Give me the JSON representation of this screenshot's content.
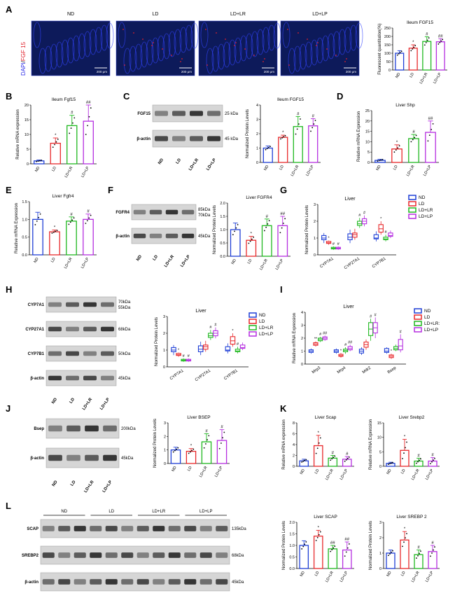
{
  "colors": {
    "ND": "#1f3fd6",
    "LD": "#e8282b",
    "LD+LR": "#1fb81f",
    "LD+LP": "#b52ee0",
    "fgf15_stain": "#e0202a",
    "dapi": "#2a2ae8",
    "blot_bg": "#d6d6d6"
  },
  "groups": [
    "ND",
    "LD",
    "LD+LR",
    "LD+LP"
  ],
  "panel_letters": [
    "A",
    "B",
    "C",
    "D",
    "E",
    "F",
    "G",
    "H",
    "I",
    "J",
    "K",
    "L"
  ],
  "panelA": {
    "stain_label_dapi": "DAPI",
    "stain_label_sep": "/",
    "stain_label_fgf": "FGF 15",
    "images": [
      "ND",
      "LD",
      "LD+LR",
      "LD+LP"
    ],
    "scale": "200 μm"
  },
  "blots": {
    "C": {
      "lanes": [
        "ND",
        "LD",
        "LD+LR",
        "LD+LP"
      ],
      "rows": [
        {
          "name": "FGF15",
          "kda": "25 kDa"
        },
        {
          "name": "β-actin",
          "kda": "45 kDa"
        }
      ]
    },
    "F": {
      "lanes": [
        "ND",
        "LD",
        "LD+LR",
        "LD+LP"
      ],
      "rows": [
        {
          "name": "FGFR4",
          "kda": "85kDa\n70kDa"
        },
        {
          "name": "β-actin",
          "kda": "45kDa"
        }
      ]
    },
    "H": {
      "lanes": [
        "ND",
        "LD",
        "LD+LR",
        "LD+LP"
      ],
      "rows": [
        {
          "name": "CYP7A1",
          "kda": "70kDa\n55kDa"
        },
        {
          "name": "CYP27A1",
          "kda": "68kDa"
        },
        {
          "name": "CYP7B1",
          "kda": "50kDa"
        },
        {
          "name": "β-actin",
          "kda": "45kDa"
        }
      ]
    },
    "J": {
      "lanes": [
        "ND",
        "LD",
        "LD+LR",
        "LD+LP"
      ],
      "rows": [
        {
          "name": "Bsep",
          "kda": "200kDa"
        },
        {
          "name": "β-actin",
          "kda": "45kDa"
        }
      ]
    },
    "L": {
      "group_headers": [
        "ND",
        "LD",
        "LD+LR",
        "LD+LP"
      ],
      "rows": [
        {
          "name": "SCAP",
          "kda": "135kDa"
        },
        {
          "name": "SREBP2",
          "kda": "68kDa"
        },
        {
          "name": "β-actin",
          "kda": "45kDa"
        }
      ]
    }
  },
  "chart_data": [
    {
      "id": "A",
      "type": "bar",
      "title": "Ileum FGF15",
      "ylabel": "Fluorescent quantitation(%)",
      "ylim": [
        0,
        250
      ],
      "yticks": [
        0,
        50,
        100,
        150,
        200,
        250
      ],
      "categories": [
        "ND",
        "LD",
        "LD+LR",
        "LD+LP"
      ],
      "values": [
        100,
        130,
        170,
        168
      ],
      "errors": [
        15,
        20,
        28,
        18
      ],
      "sig": [
        "",
        "*",
        "#",
        "##"
      ]
    },
    {
      "id": "B",
      "type": "bar",
      "title": "Ileum Fgf15",
      "ylabel": "Relative mRNA expression",
      "ylim": [
        0,
        20
      ],
      "yticks": [
        0,
        5,
        10,
        15,
        20
      ],
      "categories": [
        "ND",
        "LD",
        "LD+LR",
        "LD+LP"
      ],
      "values": [
        1,
        7,
        13,
        14.5
      ],
      "errors": [
        0.3,
        1.8,
        3.5,
        6
      ],
      "sig": [
        "",
        "*",
        "#",
        "##"
      ]
    },
    {
      "id": "C",
      "type": "bar",
      "title": "Ileum FGF15",
      "ylabel": "Normalized Protein Levels",
      "ylim": [
        0,
        4
      ],
      "yticks": [
        0,
        1,
        2,
        3,
        4
      ],
      "categories": [
        "ND",
        "LD",
        "LD+LR",
        "LD+LP"
      ],
      "values": [
        1,
        1.75,
        2.5,
        2.55
      ],
      "errors": [
        0.15,
        0.15,
        0.7,
        0.5
      ],
      "sig": [
        "",
        "*",
        "#",
        "#"
      ]
    },
    {
      "id": "D",
      "type": "bar",
      "title": "Liver Shp",
      "ylabel": "Relative mRNA Expression",
      "ylim": [
        0,
        25
      ],
      "yticks": [
        0,
        5,
        10,
        15,
        20,
        25
      ],
      "categories": [
        "ND",
        "LD",
        "LD+LR",
        "LD+LP"
      ],
      "values": [
        1,
        6.5,
        11.5,
        14.5
      ],
      "errors": [
        0.5,
        2,
        2,
        5.5
      ],
      "sig": [
        "",
        "*",
        "#",
        "##"
      ]
    },
    {
      "id": "E",
      "type": "bar",
      "title": "Liver Fgfr4",
      "ylabel": "Relative mRNA Expression",
      "ylim": [
        0,
        1.5
      ],
      "yticks": [
        0.0,
        0.5,
        1.0,
        1.5
      ],
      "categories": [
        "ND",
        "LD",
        "LD+LR",
        "LD+LP"
      ],
      "values": [
        1,
        0.65,
        0.95,
        1
      ],
      "errors": [
        0.2,
        0.05,
        0.12,
        0.15
      ],
      "sig": [
        "",
        "*",
        "#",
        "#"
      ]
    },
    {
      "id": "F",
      "type": "bar",
      "title": "Liver FGFR4",
      "ylabel": "Normalized Protein Levels",
      "ylim": [
        0,
        2
      ],
      "yticks": [
        0.0,
        0.5,
        1.0,
        1.5,
        2.0
      ],
      "categories": [
        "ND",
        "LD",
        "LD+LR",
        "LD+LP"
      ],
      "values": [
        1,
        0.6,
        1.15,
        1.15
      ],
      "errors": [
        0.25,
        0.15,
        0.25,
        0.35
      ],
      "sig": [
        "",
        "*",
        "#",
        "##"
      ]
    },
    {
      "id": "G",
      "type": "box",
      "title": "Liver",
      "ylabel": "Normalized Protein Levels",
      "ylim": [
        0,
        3
      ],
      "yticks": [
        0,
        1,
        2,
        3
      ],
      "categories": [
        "CYP7A1",
        "CYP27A1",
        "CYP7B1"
      ],
      "series": [
        {
          "name": "ND",
          "boxes": [
            [
              0.7,
              0.9,
              1.0,
              1.15,
              1.3
            ],
            [
              0.7,
              0.9,
              1.05,
              1.25,
              1.5
            ],
            [
              0.8,
              0.95,
              1.0,
              1.2,
              1.4
            ]
          ]
        },
        {
          "name": "LD",
          "boxes": [
            [
              0.6,
              0.68,
              0.72,
              0.8,
              0.85
            ],
            [
              0.9,
              1.05,
              1.2,
              1.3,
              1.55
            ],
            [
              1.2,
              1.35,
              1.55,
              1.8,
              2.0
            ]
          ]
        },
        {
          "name": "LD+LR",
          "boxes": [
            [
              0.3,
              0.35,
              0.4,
              0.45,
              0.5
            ],
            [
              1.6,
              1.75,
              1.85,
              2.0,
              2.2
            ],
            [
              0.8,
              0.9,
              0.95,
              1.05,
              1.2
            ]
          ]
        },
        {
          "name": "LD+LP",
          "boxes": [
            [
              0.3,
              0.35,
              0.4,
              0.45,
              0.5
            ],
            [
              1.7,
              1.85,
              2.0,
              2.15,
              2.35
            ],
            [
              1.0,
              1.1,
              1.15,
              1.3,
              1.45
            ]
          ]
        }
      ],
      "sig": [
        [
          "",
          "*",
          "#",
          "#"
        ],
        [
          "",
          "",
          "#",
          "#"
        ],
        [
          "",
          "*",
          "#",
          ""
        ]
      ],
      "legend": "top-right"
    },
    {
      "id": "H",
      "type": "box",
      "title": "Liver",
      "ylabel": "Normalized Protein Levels",
      "ylim": [
        0,
        3
      ],
      "yticks": [
        0,
        1,
        2,
        3
      ],
      "categories": [
        "CYP7A1",
        "CYP27A1",
        "CYP7B1"
      ],
      "series": [
        {
          "name": "ND",
          "boxes": [
            [
              0.7,
              0.9,
              1.0,
              1.15,
              1.3
            ],
            [
              0.7,
              0.9,
              1.05,
              1.25,
              1.5
            ],
            [
              0.8,
              0.95,
              1.0,
              1.2,
              1.4
            ]
          ]
        },
        {
          "name": "LD",
          "boxes": [
            [
              0.6,
              0.68,
              0.72,
              0.8,
              0.85
            ],
            [
              0.9,
              1.05,
              1.2,
              1.3,
              1.55
            ],
            [
              1.2,
              1.35,
              1.55,
              1.8,
              2.0
            ]
          ]
        },
        {
          "name": "LD+LR",
          "boxes": [
            [
              0.3,
              0.35,
              0.4,
              0.45,
              0.5
            ],
            [
              1.6,
              1.75,
              1.85,
              2.0,
              2.2
            ],
            [
              0.8,
              0.9,
              0.95,
              1.05,
              1.2
            ]
          ]
        },
        {
          "name": "LD+LP",
          "boxes": [
            [
              0.3,
              0.35,
              0.4,
              0.45,
              0.5
            ],
            [
              1.7,
              1.85,
              2.0,
              2.15,
              2.35
            ],
            [
              1.0,
              1.1,
              1.15,
              1.3,
              1.45
            ]
          ]
        }
      ],
      "sig": [
        [
          "",
          "*",
          "#",
          "#"
        ],
        [
          "",
          "",
          "#",
          "#"
        ],
        [
          "",
          "*",
          "#",
          ""
        ]
      ],
      "legend": "top-right"
    },
    {
      "id": "I",
      "type": "box",
      "title": "Liver",
      "ylabel": "Relative mRNA Expression",
      "ylim": [
        0,
        4
      ],
      "yticks": [
        0,
        1,
        2,
        3,
        4
      ],
      "categories": [
        "Mrp3",
        "Mrp4",
        "Mdr2",
        "Bsep"
      ],
      "series": [
        {
          "name": "ND",
          "boxes": [
            [
              0.8,
              0.9,
              1.0,
              1.1,
              1.2
            ],
            [
              0.8,
              0.9,
              1.0,
              1.1,
              1.2
            ],
            [
              0.7,
              0.85,
              1.0,
              1.15,
              1.3
            ],
            [
              0.8,
              0.9,
              1.0,
              1.2,
              1.3
            ]
          ]
        },
        {
          "name": "LD",
          "boxes": [
            [
              1.35,
              1.45,
              1.55,
              1.65,
              1.75
            ],
            [
              0.5,
              0.6,
              0.65,
              0.75,
              0.85
            ],
            [
              1.1,
              1.3,
              1.5,
              1.7,
              1.9
            ],
            [
              0.4,
              0.5,
              0.6,
              0.7,
              0.8
            ]
          ]
        },
        {
          "name": "LD+LR:",
          "boxes": [
            [
              1.7,
              1.8,
              1.9,
              2.0,
              2.1
            ],
            [
              0.8,
              0.95,
              1.05,
              1.15,
              1.3
            ],
            [
              1.8,
              2.2,
              2.7,
              3.2,
              3.5
            ],
            [
              1.0,
              1.1,
              1.2,
              1.35,
              1.5
            ]
          ]
        },
        {
          "name": "LD+LP",
          "boxes": [
            [
              1.8,
              1.9,
              2.0,
              2.1,
              2.2
            ],
            [
              1.0,
              1.1,
              1.2,
              1.35,
              1.5
            ],
            [
              2.0,
              2.4,
              2.8,
              3.2,
              3.6
            ],
            [
              0.9,
              1.1,
              1.4,
              1.9,
              2.3
            ]
          ]
        }
      ],
      "sig": [
        [
          "",
          "**",
          "#",
          "##"
        ],
        [
          "",
          "*",
          "#",
          "##"
        ],
        [
          "",
          "",
          "#",
          "#"
        ],
        [
          "",
          "*",
          "",
          "#"
        ]
      ],
      "legend": "top-right"
    },
    {
      "id": "J",
      "type": "bar",
      "title": "Liver BSEP",
      "ylabel": "Normalized Protein Levels",
      "ylim": [
        0,
        3
      ],
      "yticks": [
        0,
        1,
        2,
        3
      ],
      "categories": [
        "ND",
        "LD",
        "LD+LR",
        "LD+LP"
      ],
      "values": [
        1,
        0.9,
        1.6,
        1.7
      ],
      "errors": [
        0.2,
        0.2,
        0.6,
        0.8
      ],
      "sig": [
        "",
        "*",
        "#",
        "#"
      ]
    },
    {
      "id": "K1",
      "type": "bar",
      "title": "Liver Scap",
      "ylabel": "Relative mRNA expression",
      "ylim": [
        0,
        8
      ],
      "yticks": [
        0,
        2,
        4,
        6,
        8
      ],
      "categories": [
        "ND",
        "LD",
        "LD+LR",
        "LD+LP"
      ],
      "values": [
        1,
        3.8,
        1.5,
        1.3
      ],
      "errors": [
        0.3,
        1.9,
        0.5,
        0.5
      ],
      "sig": [
        "",
        "*",
        "#",
        "#"
      ]
    },
    {
      "id": "K2",
      "type": "bar",
      "title": "Liver Srebp2",
      "ylabel": "Relative mRNA Expression",
      "ylim": [
        0,
        15
      ],
      "yticks": [
        0,
        5,
        10,
        15
      ],
      "categories": [
        "ND",
        "LD",
        "LD+LR",
        "LD+LP"
      ],
      "values": [
        1,
        5.5,
        1.8,
        1.8
      ],
      "errors": [
        0.4,
        3.8,
        1,
        1.2
      ],
      "sig": [
        "",
        "*",
        "#",
        "#"
      ]
    },
    {
      "id": "L1",
      "type": "bar",
      "title": "Liver SCAP",
      "ylabel": "Normalized Protein Levels",
      "ylim": [
        0,
        2
      ],
      "yticks": [
        0.0,
        0.5,
        1.0,
        1.5,
        2.0
      ],
      "categories": [
        "ND",
        "LD",
        "LD+LR",
        "LD+LP"
      ],
      "values": [
        1,
        1.4,
        0.85,
        0.8
      ],
      "errors": [
        0.2,
        0.25,
        0.15,
        0.35
      ],
      "sig": [
        "",
        "*",
        "##",
        "##"
      ]
    },
    {
      "id": "L2",
      "type": "bar",
      "title": "Liver SREBP 2",
      "ylabel": "Normalized Protein Levels",
      "ylim": [
        0,
        3
      ],
      "yticks": [
        0,
        1,
        2,
        3
      ],
      "categories": [
        "ND",
        "LD",
        "LD+LR",
        "LD+LP"
      ],
      "values": [
        1,
        1.85,
        0.9,
        1.1
      ],
      "errors": [
        0.2,
        0.55,
        0.3,
        0.4
      ],
      "sig": [
        "",
        "*",
        "#",
        "#"
      ]
    }
  ]
}
